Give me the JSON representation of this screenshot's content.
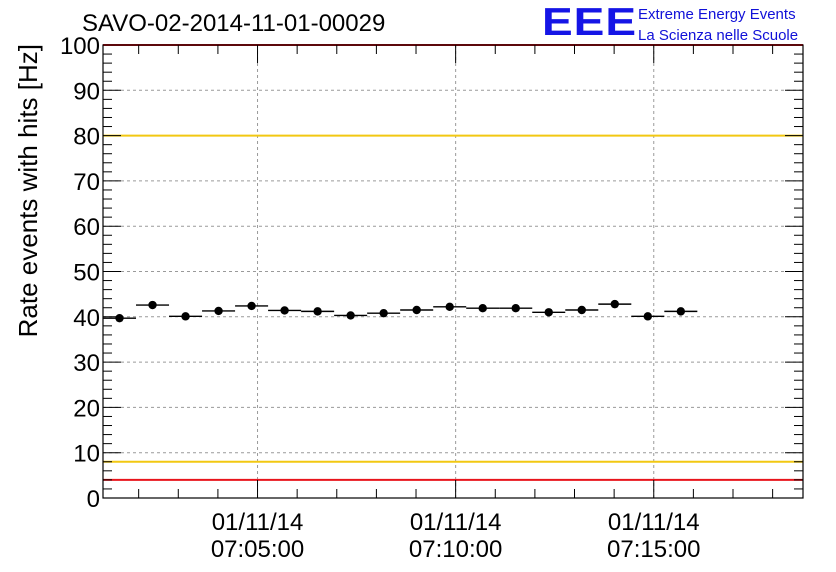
{
  "chart_data": {
    "type": "scatter",
    "title": "SAVO-02-2014-11-01-00029",
    "ylabel": "Rate events with hits [Hz]",
    "xlabel": "",
    "ylim": [
      0,
      100
    ],
    "yticks": [
      0,
      10,
      20,
      30,
      40,
      50,
      60,
      70,
      80,
      90,
      100
    ],
    "x_range": [
      "07:01:06",
      "07:18:46"
    ],
    "x_tick_labels": [
      {
        "date": "01/11/14",
        "time": "07:05:00"
      },
      {
        "date": "01/11/14",
        "time": "07:10:00"
      },
      {
        "date": "01/11/14",
        "time": "07:15:00"
      }
    ],
    "grid": true,
    "bin_width_seconds": 50,
    "points": [
      {
        "x": "07:01:31",
        "y": 39.7
      },
      {
        "x": "07:02:21",
        "y": 42.6
      },
      {
        "x": "07:03:11",
        "y": 40.1
      },
      {
        "x": "07:04:01",
        "y": 41.3
      },
      {
        "x": "07:04:51",
        "y": 42.4
      },
      {
        "x": "07:05:41",
        "y": 41.4
      },
      {
        "x": "07:06:31",
        "y": 41.2
      },
      {
        "x": "07:07:21",
        "y": 40.3
      },
      {
        "x": "07:08:11",
        "y": 40.8
      },
      {
        "x": "07:09:01",
        "y": 41.5
      },
      {
        "x": "07:09:51",
        "y": 42.2
      },
      {
        "x": "07:10:41",
        "y": 41.9
      },
      {
        "x": "07:11:31",
        "y": 41.9
      },
      {
        "x": "07:12:21",
        "y": 41.0
      },
      {
        "x": "07:13:11",
        "y": 41.5
      },
      {
        "x": "07:14:01",
        "y": 42.8
      },
      {
        "x": "07:14:51",
        "y": 40.1
      },
      {
        "x": "07:15:41",
        "y": 41.2
      }
    ],
    "reference_lines": [
      {
        "y": 100,
        "color": "#e8141c"
      },
      {
        "y": 80,
        "color": "#f2c812"
      },
      {
        "y": 8,
        "color": "#f2c812"
      },
      {
        "y": 4,
        "color": "#e8141c"
      }
    ],
    "marker_color": "#000000"
  },
  "logo": {
    "mark": "EEE",
    "line1": "Extreme Energy Events",
    "line2": "La Scienza nelle Scuole"
  }
}
